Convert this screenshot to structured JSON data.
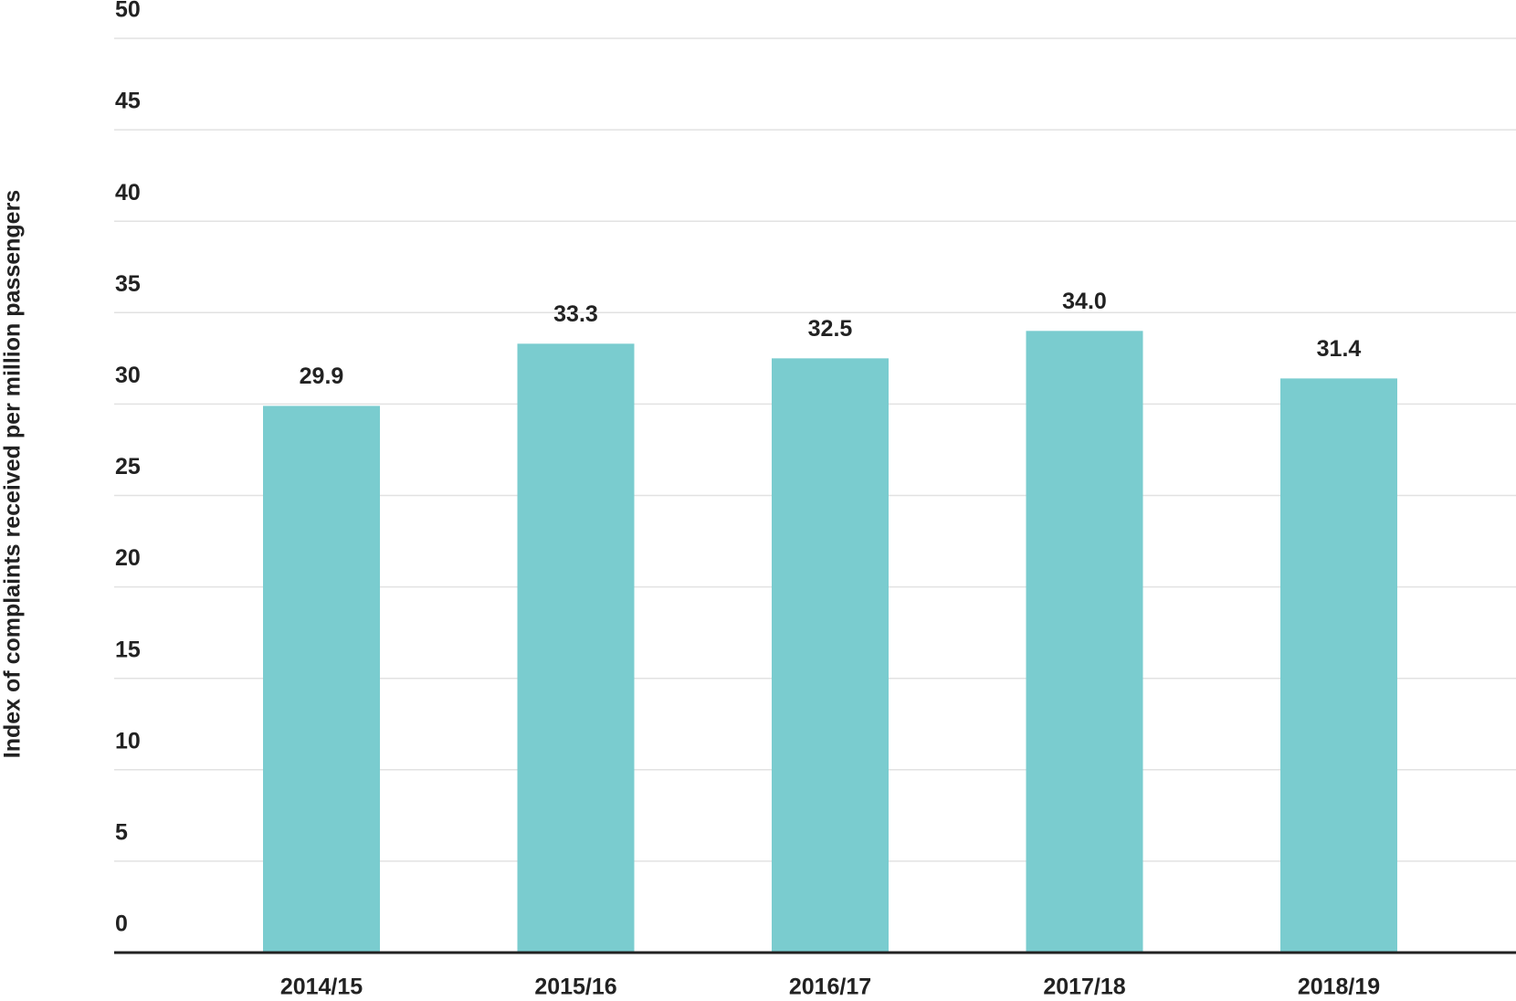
{
  "chart_data": {
    "type": "bar",
    "y_label": "Index of complaints received per million passengers",
    "categories": [
      "2014/15",
      "2015/16",
      "2016/17",
      "2017/18",
      "2018/19"
    ],
    "values": [
      29.9,
      33.3,
      32.5,
      34.0,
      31.4
    ],
    "value_labels": [
      "29.9",
      "33.3",
      "32.5",
      "34.0",
      "31.4"
    ],
    "color": "#7acccf",
    "ylim": [
      0,
      50
    ],
    "yticks": [
      0,
      5,
      10,
      15,
      20,
      25,
      30,
      35,
      40,
      45,
      50
    ],
    "grid": true
  }
}
